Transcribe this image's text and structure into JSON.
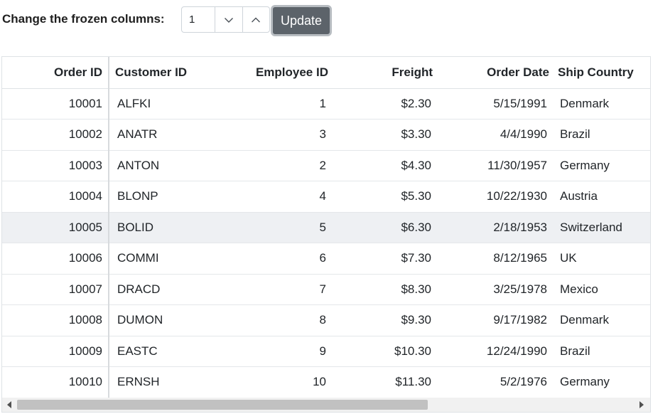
{
  "toolbar": {
    "label": "Change the frozen columns:",
    "frozen_value": "1",
    "update_label": "Update"
  },
  "icons": {
    "decrement": "chevron-down-icon",
    "increment": "chevron-up-icon",
    "scroll_left": "triangle-left-icon",
    "scroll_right": "triangle-right-icon"
  },
  "colors": {
    "button_bg": "#5c636a",
    "button_border": "#b7bcc1",
    "hover_row": "#eef0f3",
    "grid_border": "#dee2e6"
  },
  "grid": {
    "columns": [
      "Order ID",
      "Customer ID",
      "Employee ID",
      "Freight",
      "Order Date",
      "Ship Country"
    ],
    "hover_row_index": 4,
    "rows": [
      [
        "10001",
        "ALFKI",
        "1",
        "$2.30",
        "5/15/1991",
        "Denmark"
      ],
      [
        "10002",
        "ANATR",
        "3",
        "$3.30",
        "4/4/1990",
        "Brazil"
      ],
      [
        "10003",
        "ANTON",
        "2",
        "$4.30",
        "11/30/1957",
        "Germany"
      ],
      [
        "10004",
        "BLONP",
        "4",
        "$5.30",
        "10/22/1930",
        "Austria"
      ],
      [
        "10005",
        "BOLID",
        "5",
        "$6.30",
        "2/18/1953",
        "Switzerland"
      ],
      [
        "10006",
        "COMMI",
        "6",
        "$7.30",
        "8/12/1965",
        "UK"
      ],
      [
        "10007",
        "DRACD",
        "7",
        "$8.30",
        "3/25/1978",
        "Mexico"
      ],
      [
        "10008",
        "DUMON",
        "8",
        "$9.30",
        "9/17/1982",
        "Denmark"
      ],
      [
        "10009",
        "EASTC",
        "9",
        "$10.30",
        "12/24/1990",
        "Brazil"
      ],
      [
        "10010",
        "ERNSH",
        "10",
        "$11.30",
        "5/2/1976",
        "Germany"
      ]
    ]
  }
}
